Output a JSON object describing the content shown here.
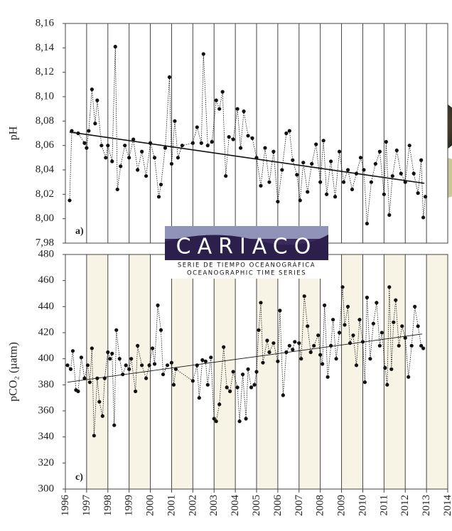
{
  "chart_data": [
    {
      "type": "line",
      "ylabel": "pH",
      "annotation": "a)",
      "xlim": [
        1996,
        2014
      ],
      "ylim": [
        7.98,
        8.16
      ],
      "yticks": [
        {
          "value": 7.98,
          "label": "7,98"
        },
        {
          "value": 8.0,
          "label": "8,00"
        },
        {
          "value": 8.02,
          "label": "8,02"
        },
        {
          "value": 8.04,
          "label": "8,04"
        },
        {
          "value": 8.06,
          "label": "8,06"
        },
        {
          "value": 8.08,
          "label": "8,08"
        },
        {
          "value": 8.1,
          "label": "8,10"
        },
        {
          "value": 8.12,
          "label": "8,12"
        },
        {
          "value": 8.14,
          "label": "8,14"
        },
        {
          "value": 8.16,
          "label": "8,16"
        }
      ],
      "xgrid": [
        1997,
        1998,
        1999,
        2000,
        2001,
        2002,
        2003,
        2004,
        2005,
        2006,
        2007,
        2008,
        2009,
        2010,
        2011,
        2012,
        2013
      ],
      "series": [
        {
          "style": "dotted-markers",
          "color": "#111111",
          "x": [
            1996.2,
            1996.3,
            1996.6,
            1996.9,
            1997.0,
            1997.1,
            1997.25,
            1997.4,
            1997.5,
            1997.7,
            1997.9,
            1998.0,
            1998.2,
            1998.35,
            1998.45,
            1998.6,
            1998.8,
            1999.0,
            1999.2,
            1999.4,
            1999.6,
            1999.8,
            2000.0,
            2000.2,
            2000.4,
            2000.5,
            2000.7,
            2000.9,
            2001.0,
            2001.15,
            2001.3,
            2001.5,
            2002.0,
            2002.2,
            2002.4,
            2002.5,
            2002.7,
            2002.9,
            2003.1,
            2003.25,
            2003.4,
            2003.55,
            2003.7,
            2003.9,
            2004.1,
            2004.25,
            2004.4,
            2004.6,
            2004.8,
            2005.0,
            2005.2,
            2005.4,
            2005.6,
            2005.8,
            2006.0,
            2006.2,
            2006.4,
            2006.55,
            2006.7,
            2006.9,
            2007.05,
            2007.2,
            2007.4,
            2007.6,
            2007.8,
            2008.0,
            2008.15,
            2008.3,
            2008.5,
            2008.7,
            2008.9,
            2009.1,
            2009.3,
            2009.5,
            2009.7,
            2009.9,
            2010.05,
            2010.2,
            2010.4,
            2010.6,
            2010.8,
            2011.0,
            2011.1,
            2011.25,
            2011.4,
            2011.6,
            2011.8,
            2012.0,
            2012.2,
            2012.4,
            2012.6,
            2012.75,
            2012.85,
            2012.95
          ],
          "values": [
            8.015,
            8.072,
            8.07,
            8.062,
            8.058,
            8.072,
            8.106,
            8.078,
            8.097,
            8.06,
            8.05,
            8.06,
            8.047,
            8.141,
            8.024,
            8.043,
            8.06,
            8.05,
            8.065,
            8.04,
            8.055,
            8.035,
            8.062,
            8.05,
            8.018,
            8.028,
            8.058,
            8.116,
            8.045,
            8.08,
            8.05,
            8.06,
            8.062,
            8.075,
            8.062,
            8.135,
            8.06,
            8.063,
            8.097,
            8.09,
            8.104,
            8.035,
            8.067,
            8.065,
            8.09,
            8.058,
            8.088,
            8.068,
            8.066,
            8.05,
            8.027,
            8.058,
            8.03,
            8.055,
            8.014,
            8.04,
            8.07,
            8.072,
            8.048,
            8.036,
            8.015,
            8.046,
            8.022,
            8.045,
            8.061,
            8.03,
            8.064,
            8.02,
            8.047,
            8.018,
            8.055,
            8.03,
            8.04,
            8.024,
            8.037,
            8.05,
            8.04,
            7.996,
            8.03,
            8.045,
            8.055,
            8.02,
            8.063,
            8.003,
            8.035,
            8.056,
            8.037,
            8.03,
            8.06,
            8.037,
            8.021,
            8.048,
            8.001,
            8.018
          ]
        },
        {
          "style": "trend",
          "color": "#111111",
          "x": [
            1996.2,
            2012.9
          ],
          "values": [
            8.071,
            8.029
          ]
        }
      ]
    },
    {
      "type": "line",
      "ylabel": "pCO₂ (µatm)",
      "annotation": "c)",
      "bands": true,
      "xlim": [
        1996,
        2014
      ],
      "ylim": [
        300,
        480
      ],
      "yticks": [
        300,
        320,
        340,
        360,
        380,
        400,
        420,
        440,
        460,
        480
      ],
      "xticks": [
        1996,
        1997,
        1998,
        1999,
        2000,
        2001,
        2002,
        2003,
        2004,
        2005,
        2006,
        2007,
        2008,
        2009,
        2010,
        2011,
        2012,
        2013,
        2014
      ],
      "series": [
        {
          "style": "dotted-markers",
          "color": "#111111",
          "x": [
            1996.1,
            1996.25,
            1996.35,
            1996.5,
            1996.6,
            1996.75,
            1996.9,
            1997.05,
            1997.15,
            1997.25,
            1997.35,
            1997.5,
            1997.6,
            1997.75,
            1997.85,
            1998.0,
            1998.1,
            1998.2,
            1998.3,
            1998.4,
            1998.55,
            1998.7,
            1998.85,
            1999.0,
            1999.1,
            1999.3,
            1999.4,
            1999.6,
            1999.8,
            1999.95,
            2000.1,
            2000.2,
            2000.35,
            2000.5,
            2000.6,
            2000.8,
            2001.0,
            2001.1,
            2001.2,
            2002.0,
            2002.2,
            2002.3,
            2002.45,
            2002.6,
            2002.7,
            2002.85,
            2003.0,
            2003.1,
            2003.25,
            2003.45,
            2003.6,
            2003.75,
            2003.9,
            2004.1,
            2004.2,
            2004.35,
            2004.5,
            2004.6,
            2004.75,
            2004.9,
            2005.0,
            2005.1,
            2005.2,
            2005.3,
            2005.5,
            2005.6,
            2005.8,
            2006.0,
            2006.1,
            2006.25,
            2006.4,
            2006.55,
            2006.7,
            2006.8,
            2007.0,
            2007.1,
            2007.25,
            2007.4,
            2007.55,
            2007.7,
            2007.9,
            2008.0,
            2008.1,
            2008.2,
            2008.35,
            2008.5,
            2008.6,
            2008.75,
            2008.9,
            2009.05,
            2009.15,
            2009.3,
            2009.4,
            2009.55,
            2009.7,
            2009.85,
            2010.0,
            2010.1,
            2010.2,
            2010.35,
            2010.5,
            2010.65,
            2010.8,
            2010.9,
            2011.05,
            2011.15,
            2011.25,
            2011.35,
            2011.45,
            2011.55,
            2011.7,
            2011.85,
            2012.0,
            2012.15,
            2012.3,
            2012.45,
            2012.6,
            2012.75,
            2012.85
          ],
          "values": [
            395,
            392,
            406,
            376,
            375,
            401,
            385,
            395,
            382,
            408,
            341,
            385,
            367,
            356,
            385,
            405,
            400,
            404,
            349,
            422,
            400,
            388,
            395,
            392,
            400,
            375,
            410,
            395,
            385,
            395,
            408,
            396,
            441,
            422,
            388,
            395,
            397,
            380,
            392,
            383,
            395,
            370,
            399,
            398,
            380,
            401,
            354,
            352,
            365,
            409,
            378,
            375,
            390,
            378,
            352,
            388,
            354,
            392,
            378,
            380,
            390,
            422,
            443,
            397,
            414,
            405,
            412,
            398,
            437,
            372,
            405,
            410,
            407,
            413,
            412,
            400,
            448,
            425,
            405,
            410,
            418,
            403,
            396,
            441,
            386,
            410,
            430,
            400,
            420,
            455,
            426,
            440,
            412,
            418,
            395,
            430,
            413,
            382,
            447,
            400,
            427,
            443,
            410,
            420,
            393,
            380,
            455,
            392,
            428,
            445,
            410,
            425,
            416,
            386,
            410,
            440,
            425,
            410,
            408
          ]
        },
        {
          "style": "trend",
          "color": "#111111",
          "x": [
            1996.1,
            2012.8
          ],
          "values": [
            382,
            419
          ]
        }
      ]
    }
  ],
  "logo": {
    "title": "CARIACO",
    "line1": "SERIE DE TIEMPO OCEANOGRÁFICA",
    "line2": "OCEANOGRAPHIC TIME SERIES"
  }
}
